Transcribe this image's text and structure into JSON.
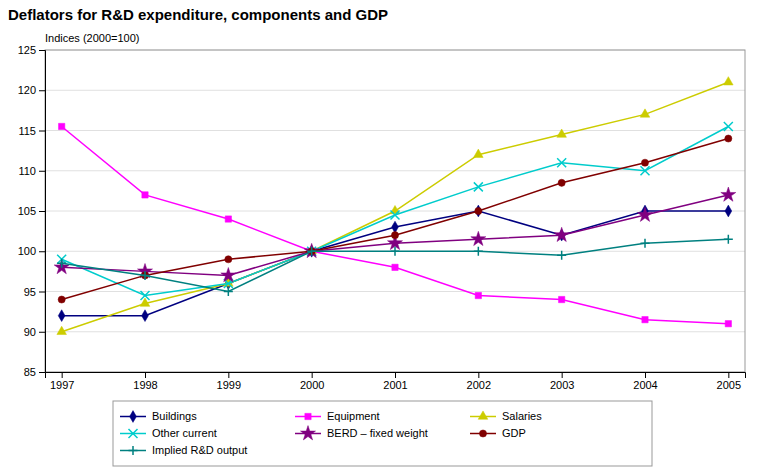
{
  "chart_data": {
    "type": "line",
    "title": "Deflators for R&D expenditure, components and GDP",
    "ylabel": "Indices (2000=100)",
    "x": [
      1997,
      1998,
      1999,
      2000,
      2001,
      2002,
      2003,
      2004,
      2005
    ],
    "xlim": [
      1996.8,
      2005.2
    ],
    "xticks": [
      1997,
      1998,
      1999,
      2000,
      2001,
      2002,
      2003,
      2004,
      2005
    ],
    "ylim": [
      85,
      125
    ],
    "yticks": [
      85,
      90,
      95,
      100,
      105,
      110,
      115,
      120,
      125
    ],
    "grid": true,
    "legend": "bottom",
    "series": [
      {
        "name": "Buildings",
        "color": "#000080",
        "marker": "diamond",
        "values": [
          92,
          92,
          96,
          100,
          103,
          105,
          102,
          105,
          105
        ]
      },
      {
        "name": "Equipment",
        "color": "#FF00FF",
        "marker": "square",
        "values": [
          115.5,
          107,
          104,
          100,
          98,
          94.5,
          94,
          91.5,
          91
        ]
      },
      {
        "name": "Salaries",
        "color": "#CCCC00",
        "marker": "triangle",
        "values": [
          90,
          93.5,
          96,
          100,
          105,
          112,
          114.5,
          117,
          121
        ]
      },
      {
        "name": "Other current",
        "color": "#00CCCC",
        "marker": "x",
        "values": [
          99,
          94.5,
          96,
          100,
          104.5,
          108,
          111,
          110,
          115.5
        ]
      },
      {
        "name": "BERD – fixed weight",
        "color": "#800080",
        "marker": "star",
        "values": [
          98,
          97.5,
          97,
          100,
          101,
          101.5,
          102,
          104.5,
          107
        ]
      },
      {
        "name": "GDP",
        "color": "#800000",
        "marker": "circle",
        "values": [
          94,
          97,
          99,
          100,
          102,
          105,
          108.5,
          111,
          114
        ]
      },
      {
        "name": "Implied R&D output",
        "color": "#008080",
        "marker": "plus",
        "values": [
          98.5,
          97,
          95,
          100,
          100,
          100,
          99.5,
          101,
          101.5
        ]
      }
    ]
  }
}
